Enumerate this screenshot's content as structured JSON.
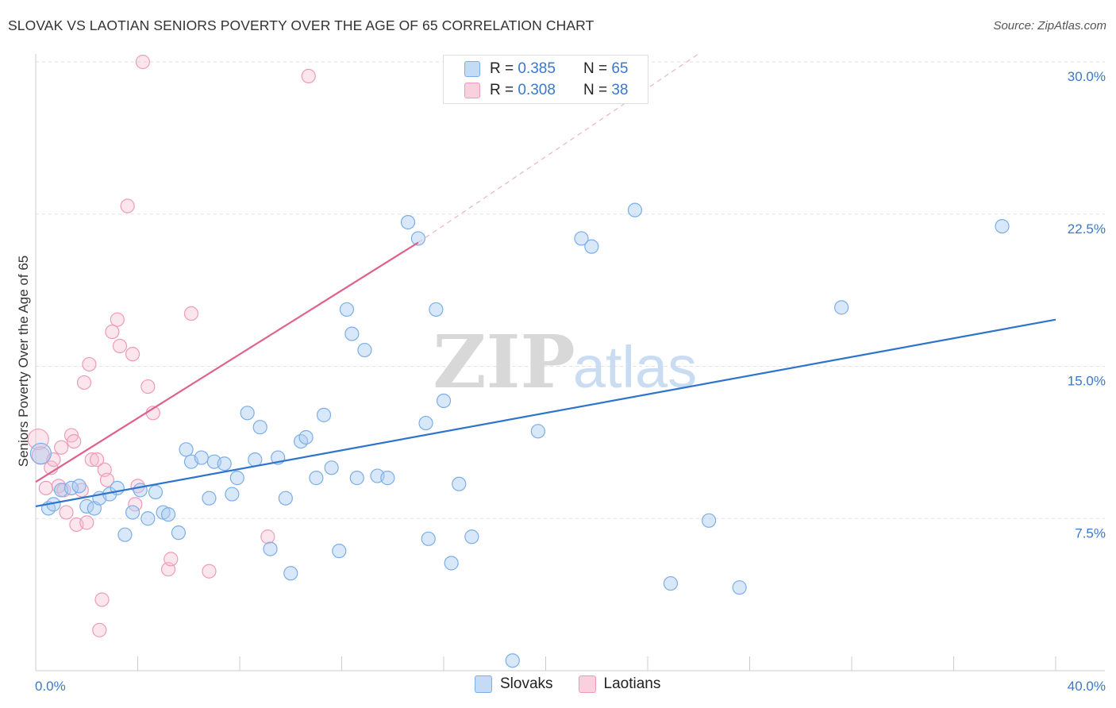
{
  "title": "SLOVAK VS LAOTIAN SENIORS POVERTY OVER THE AGE OF 65 CORRELATION CHART",
  "source": "Source: ZipAtlas.com",
  "watermark": {
    "zip": "ZIP",
    "atlas": "atlas"
  },
  "legend": {
    "r_label": "R =",
    "n_label": "N =",
    "rows": [
      {
        "r": "0.385",
        "n": "65",
        "color": "#7aaee8"
      },
      {
        "r": "0.308",
        "n": "38",
        "color": "#f09ab8"
      }
    ]
  },
  "bottom_legend": [
    "Slovaks",
    "Laotians"
  ],
  "chart_data": {
    "type": "scatter",
    "xlabel": "",
    "ylabel": "Seniors Poverty Over the Age of 65",
    "xlim": [
      0,
      40
    ],
    "ylim": [
      0,
      30
    ],
    "x_tick_labels": [
      "0.0%",
      "40.0%"
    ],
    "y_ticks": [
      7.5,
      15.0,
      22.5,
      30.0
    ],
    "y_tick_labels": [
      "7.5%",
      "15.0%",
      "22.5%",
      "30.0%"
    ],
    "grid": true,
    "colors": {
      "slovaks": "#7aaee8",
      "laotians": "#f09ab8",
      "slovaks_line": "#2f74cc",
      "laotians_line": "#e0608c"
    },
    "series": [
      {
        "name": "Slovaks",
        "points": [
          [
            0.2,
            10.7
          ],
          [
            0.5,
            8.0
          ],
          [
            0.7,
            8.2
          ],
          [
            1.0,
            8.9
          ],
          [
            1.4,
            9.0
          ],
          [
            1.7,
            9.1
          ],
          [
            2.0,
            8.1
          ],
          [
            2.3,
            8.0
          ],
          [
            2.5,
            8.5
          ],
          [
            2.9,
            8.7
          ],
          [
            3.2,
            9.0
          ],
          [
            3.5,
            6.7
          ],
          [
            3.8,
            7.8
          ],
          [
            4.1,
            8.9
          ],
          [
            4.4,
            7.5
          ],
          [
            4.7,
            8.8
          ],
          [
            5.0,
            7.8
          ],
          [
            5.2,
            7.7
          ],
          [
            5.6,
            6.8
          ],
          [
            5.9,
            10.9
          ],
          [
            6.1,
            10.3
          ],
          [
            6.5,
            10.5
          ],
          [
            6.8,
            8.5
          ],
          [
            7.0,
            10.3
          ],
          [
            7.4,
            10.2
          ],
          [
            7.7,
            8.7
          ],
          [
            7.9,
            9.5
          ],
          [
            8.3,
            12.7
          ],
          [
            8.6,
            10.4
          ],
          [
            8.8,
            12.0
          ],
          [
            9.2,
            6.0
          ],
          [
            9.5,
            10.5
          ],
          [
            9.8,
            8.5
          ],
          [
            10.0,
            4.8
          ],
          [
            10.4,
            11.3
          ],
          [
            10.6,
            11.5
          ],
          [
            11.0,
            9.5
          ],
          [
            11.3,
            12.6
          ],
          [
            11.6,
            10.0
          ],
          [
            11.9,
            5.9
          ],
          [
            12.2,
            17.8
          ],
          [
            12.4,
            16.6
          ],
          [
            12.6,
            9.5
          ],
          [
            12.9,
            15.8
          ],
          [
            13.4,
            9.6
          ],
          [
            13.8,
            9.5
          ],
          [
            14.6,
            22.1
          ],
          [
            15.0,
            21.3
          ],
          [
            15.3,
            12.2
          ],
          [
            15.4,
            6.5
          ],
          [
            15.7,
            17.8
          ],
          [
            16.0,
            13.3
          ],
          [
            16.3,
            5.3
          ],
          [
            16.6,
            9.2
          ],
          [
            17.1,
            6.6
          ],
          [
            18.7,
            0.5
          ],
          [
            19.7,
            11.8
          ],
          [
            21.4,
            21.3
          ],
          [
            21.8,
            20.9
          ],
          [
            23.5,
            22.7
          ],
          [
            24.9,
            4.3
          ],
          [
            26.4,
            7.4
          ],
          [
            27.6,
            4.1
          ],
          [
            31.6,
            17.9
          ],
          [
            37.9,
            21.9
          ]
        ]
      },
      {
        "name": "Laotians",
        "points": [
          [
            0.1,
            11.4
          ],
          [
            0.2,
            10.6
          ],
          [
            0.4,
            9.0
          ],
          [
            0.6,
            10.0
          ],
          [
            0.7,
            10.4
          ],
          [
            0.9,
            9.1
          ],
          [
            1.0,
            11.0
          ],
          [
            1.1,
            8.9
          ],
          [
            1.2,
            7.8
          ],
          [
            1.4,
            11.6
          ],
          [
            1.5,
            11.3
          ],
          [
            1.6,
            7.2
          ],
          [
            1.8,
            8.9
          ],
          [
            1.9,
            14.2
          ],
          [
            2.0,
            7.3
          ],
          [
            2.1,
            15.1
          ],
          [
            2.2,
            10.4
          ],
          [
            2.4,
            10.4
          ],
          [
            2.5,
            2.0
          ],
          [
            2.6,
            3.5
          ],
          [
            2.7,
            9.9
          ],
          [
            2.8,
            9.4
          ],
          [
            3.0,
            16.7
          ],
          [
            3.2,
            17.3
          ],
          [
            3.3,
            16.0
          ],
          [
            3.6,
            22.9
          ],
          [
            3.8,
            15.6
          ],
          [
            3.9,
            8.2
          ],
          [
            4.0,
            9.1
          ],
          [
            4.2,
            30.0
          ],
          [
            4.4,
            14.0
          ],
          [
            4.6,
            12.7
          ],
          [
            5.2,
            5.0
          ],
          [
            5.3,
            5.5
          ],
          [
            6.1,
            17.6
          ],
          [
            6.8,
            4.9
          ],
          [
            9.1,
            6.6
          ],
          [
            10.7,
            29.3
          ]
        ]
      }
    ],
    "trendlines": [
      {
        "name": "Slovaks",
        "x": [
          0,
          40
        ],
        "y": [
          8.1,
          17.3
        ],
        "dashed_extension": false
      },
      {
        "name": "Laotians",
        "x": [
          0,
          15.0
        ],
        "y": [
          9.3,
          21.1
        ],
        "dashed_to": [
          26,
          30.4
        ]
      }
    ]
  }
}
